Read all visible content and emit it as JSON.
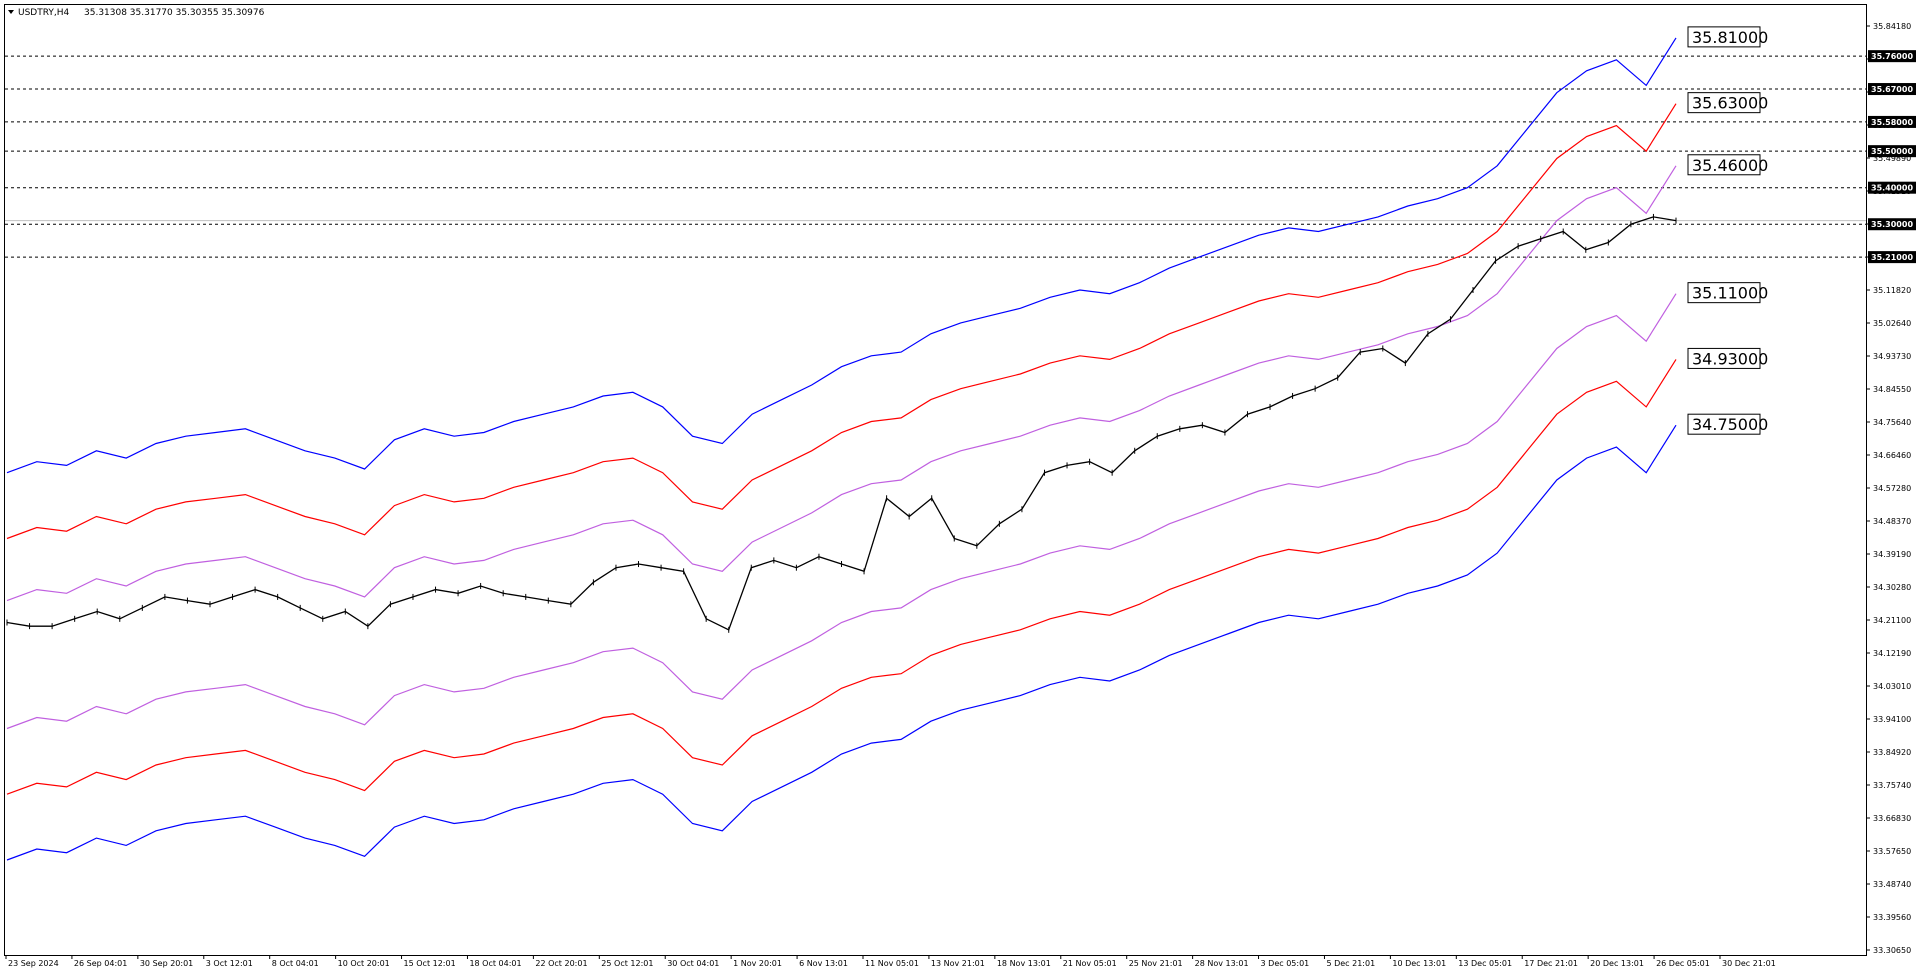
{
  "header": {
    "symbol": "USDTRY,H4",
    "ohlc": "35.31308 35.31770 35.30355 35.30976",
    "dropdown_icon": "triangle-down-icon"
  },
  "colors": {
    "price": "#000000",
    "band_outer": "#0000ff",
    "band_middle": "#ff0000",
    "band_inner": "#c060e0",
    "level_line": "#000000",
    "bid_line": "#c0c0c0",
    "tag_bg": "#000000",
    "tag_text": "#ffffff"
  },
  "chart_data": {
    "type": "line",
    "title": "",
    "xlabel": "",
    "ylabel": "",
    "ylim": [
      33.3,
      35.9
    ],
    "y_ticks": [
      "35.84180",
      "35.75600",
      "35.67060",
      "35.58470",
      "35.49890",
      "35.41310",
      "35.32730",
      "35.20150",
      "35.11820",
      "35.02640",
      "34.93730",
      "34.84550",
      "34.75640",
      "34.66460",
      "34.57280",
      "34.48370",
      "34.39190",
      "34.30280",
      "34.21100",
      "34.12190",
      "34.03010",
      "33.94100",
      "33.84920",
      "33.75740",
      "33.66830",
      "33.57650",
      "33.48740",
      "33.39560",
      "33.30650"
    ],
    "x_ticks": [
      "23 Sep 2024",
      "26 Sep 04:01",
      "30 Sep 20:01",
      "3 Oct 12:01",
      "8 Oct 04:01",
      "10 Oct 20:01",
      "15 Oct 12:01",
      "18 Oct 04:01",
      "22 Oct 20:01",
      "25 Oct 12:01",
      "30 Oct 04:01",
      "1 Nov 20:01",
      "6 Nov 13:01",
      "11 Nov 05:01",
      "13 Nov 21:01",
      "18 Nov 13:01",
      "21 Nov 05:01",
      "25 Nov 21:01",
      "28 Nov 13:01",
      "3 Dec 05:01",
      "5 Dec 21:01",
      "10 Dec 13:01",
      "13 Dec 05:01",
      "17 Dec 21:01",
      "20 Dec 13:01",
      "26 Dec 05:01",
      "30 Dec 21:01"
    ],
    "horizontal_levels": [
      "35.76000",
      "35.67000",
      "35.58000",
      "35.50000",
      "35.40000",
      "35.30000",
      "35.21000"
    ],
    "current_price": 35.30976,
    "band_end_labels": [
      "35.81000",
      "35.63000",
      "35.46000",
      "35.11000",
      "34.93000",
      "34.75000"
    ],
    "series": [
      {
        "values": [
          34.62,
          34.65,
          34.64,
          34.68,
          34.66,
          34.7,
          34.72,
          34.73,
          34.74,
          34.71,
          34.68,
          34.66,
          34.63,
          34.71,
          34.74,
          34.72,
          34.73,
          34.76,
          34.78,
          34.8,
          34.83,
          34.84,
          34.8,
          34.72,
          34.7,
          34.78,
          34.82,
          34.86,
          34.91,
          34.94,
          34.95,
          35.0,
          35.03,
          35.05,
          35.07,
          35.1,
          35.12,
          35.11,
          35.14,
          35.18,
          35.21,
          35.24,
          35.27,
          35.29,
          35.28,
          35.3,
          35.32,
          35.35,
          35.37,
          35.4,
          35.46,
          35.56,
          35.66,
          35.72,
          35.75,
          35.68,
          35.81
        ]
      },
      {
        "values": [
          34.44,
          34.47,
          34.46,
          34.5,
          34.48,
          34.52,
          34.54,
          34.55,
          34.56,
          34.53,
          34.5,
          34.48,
          34.45,
          34.53,
          34.56,
          34.54,
          34.55,
          34.58,
          34.6,
          34.62,
          34.65,
          34.66,
          34.62,
          34.54,
          34.52,
          34.6,
          34.64,
          34.68,
          34.73,
          34.76,
          34.77,
          34.82,
          34.85,
          34.87,
          34.89,
          34.92,
          34.94,
          34.93,
          34.96,
          35.0,
          35.03,
          35.06,
          35.09,
          35.11,
          35.1,
          35.12,
          35.14,
          35.17,
          35.19,
          35.22,
          35.28,
          35.38,
          35.48,
          35.54,
          35.57,
          35.5,
          35.63
        ]
      },
      {
        "values": [
          34.27,
          34.3,
          34.29,
          34.33,
          34.31,
          34.35,
          34.37,
          34.38,
          34.39,
          34.36,
          34.33,
          34.31,
          34.28,
          34.36,
          34.39,
          34.37,
          34.38,
          34.41,
          34.43,
          34.45,
          34.48,
          34.49,
          34.45,
          34.37,
          34.35,
          34.43,
          34.47,
          34.51,
          34.56,
          34.59,
          34.6,
          34.65,
          34.68,
          34.7,
          34.72,
          34.75,
          34.77,
          34.76,
          34.79,
          34.83,
          34.86,
          34.89,
          34.92,
          34.94,
          34.93,
          34.95,
          34.97,
          35.0,
          35.02,
          35.05,
          35.11,
          35.21,
          35.31,
          35.37,
          35.4,
          35.33,
          35.46
        ]
      },
      {
        "values": [
          33.92,
          33.95,
          33.94,
          33.98,
          33.96,
          34.0,
          34.02,
          34.03,
          34.04,
          34.01,
          33.98,
          33.96,
          33.93,
          34.01,
          34.04,
          34.02,
          34.03,
          34.06,
          34.08,
          34.1,
          34.13,
          34.14,
          34.1,
          34.02,
          34.0,
          34.08,
          34.12,
          34.16,
          34.21,
          34.24,
          34.25,
          34.3,
          34.33,
          34.35,
          34.37,
          34.4,
          34.42,
          34.41,
          34.44,
          34.48,
          34.51,
          34.54,
          34.57,
          34.59,
          34.58,
          34.6,
          34.62,
          34.65,
          34.67,
          34.7,
          34.76,
          34.86,
          34.96,
          35.02,
          35.05,
          34.98,
          35.11
        ]
      },
      {
        "values": [
          33.74,
          33.77,
          33.76,
          33.8,
          33.78,
          33.82,
          33.84,
          33.85,
          33.86,
          33.83,
          33.8,
          33.78,
          33.75,
          33.83,
          33.86,
          33.84,
          33.85,
          33.88,
          33.9,
          33.92,
          33.95,
          33.96,
          33.92,
          33.84,
          33.82,
          33.9,
          33.94,
          33.98,
          34.03,
          34.06,
          34.07,
          34.12,
          34.15,
          34.17,
          34.19,
          34.22,
          34.24,
          34.23,
          34.26,
          34.3,
          34.33,
          34.36,
          34.39,
          34.41,
          34.4,
          34.42,
          34.44,
          34.47,
          34.49,
          34.52,
          34.58,
          34.68,
          34.78,
          34.84,
          34.87,
          34.8,
          34.93
        ]
      },
      {
        "values": [
          33.56,
          33.59,
          33.58,
          33.62,
          33.6,
          33.64,
          33.66,
          33.67,
          33.68,
          33.65,
          33.62,
          33.6,
          33.57,
          33.65,
          33.68,
          33.66,
          33.67,
          33.7,
          33.72,
          33.74,
          33.77,
          33.78,
          33.74,
          33.66,
          33.64,
          33.72,
          33.76,
          33.8,
          33.85,
          33.88,
          33.89,
          33.94,
          33.97,
          33.99,
          34.01,
          34.04,
          34.06,
          34.05,
          34.08,
          34.12,
          34.15,
          34.18,
          34.21,
          34.23,
          34.22,
          34.24,
          34.26,
          34.29,
          34.31,
          34.34,
          34.4,
          34.5,
          34.6,
          34.66,
          34.69,
          34.62,
          34.75
        ]
      },
      {
        "values": [
          34.21,
          34.2,
          34.2,
          34.22,
          34.24,
          34.22,
          34.25,
          34.28,
          34.27,
          34.26,
          34.28,
          34.3,
          34.28,
          34.25,
          34.22,
          34.24,
          34.2,
          34.26,
          34.28,
          34.3,
          34.29,
          34.31,
          34.29,
          34.28,
          34.27,
          34.26,
          34.32,
          34.36,
          34.37,
          34.36,
          34.35,
          34.22,
          34.19,
          34.36,
          34.38,
          34.36,
          34.39,
          34.37,
          34.35,
          34.55,
          34.5,
          34.55,
          34.44,
          34.42,
          34.48,
          34.52,
          34.62,
          34.64,
          34.65,
          34.62,
          34.68,
          34.72,
          34.74,
          34.75,
          34.73,
          34.78,
          34.8,
          34.83,
          34.85,
          34.88,
          34.95,
          34.96,
          34.92,
          35.0,
          35.04,
          35.12,
          35.2,
          35.24,
          35.26,
          35.28,
          35.23,
          35.25,
          35.3,
          35.32,
          35.31
        ]
      }
    ]
  }
}
